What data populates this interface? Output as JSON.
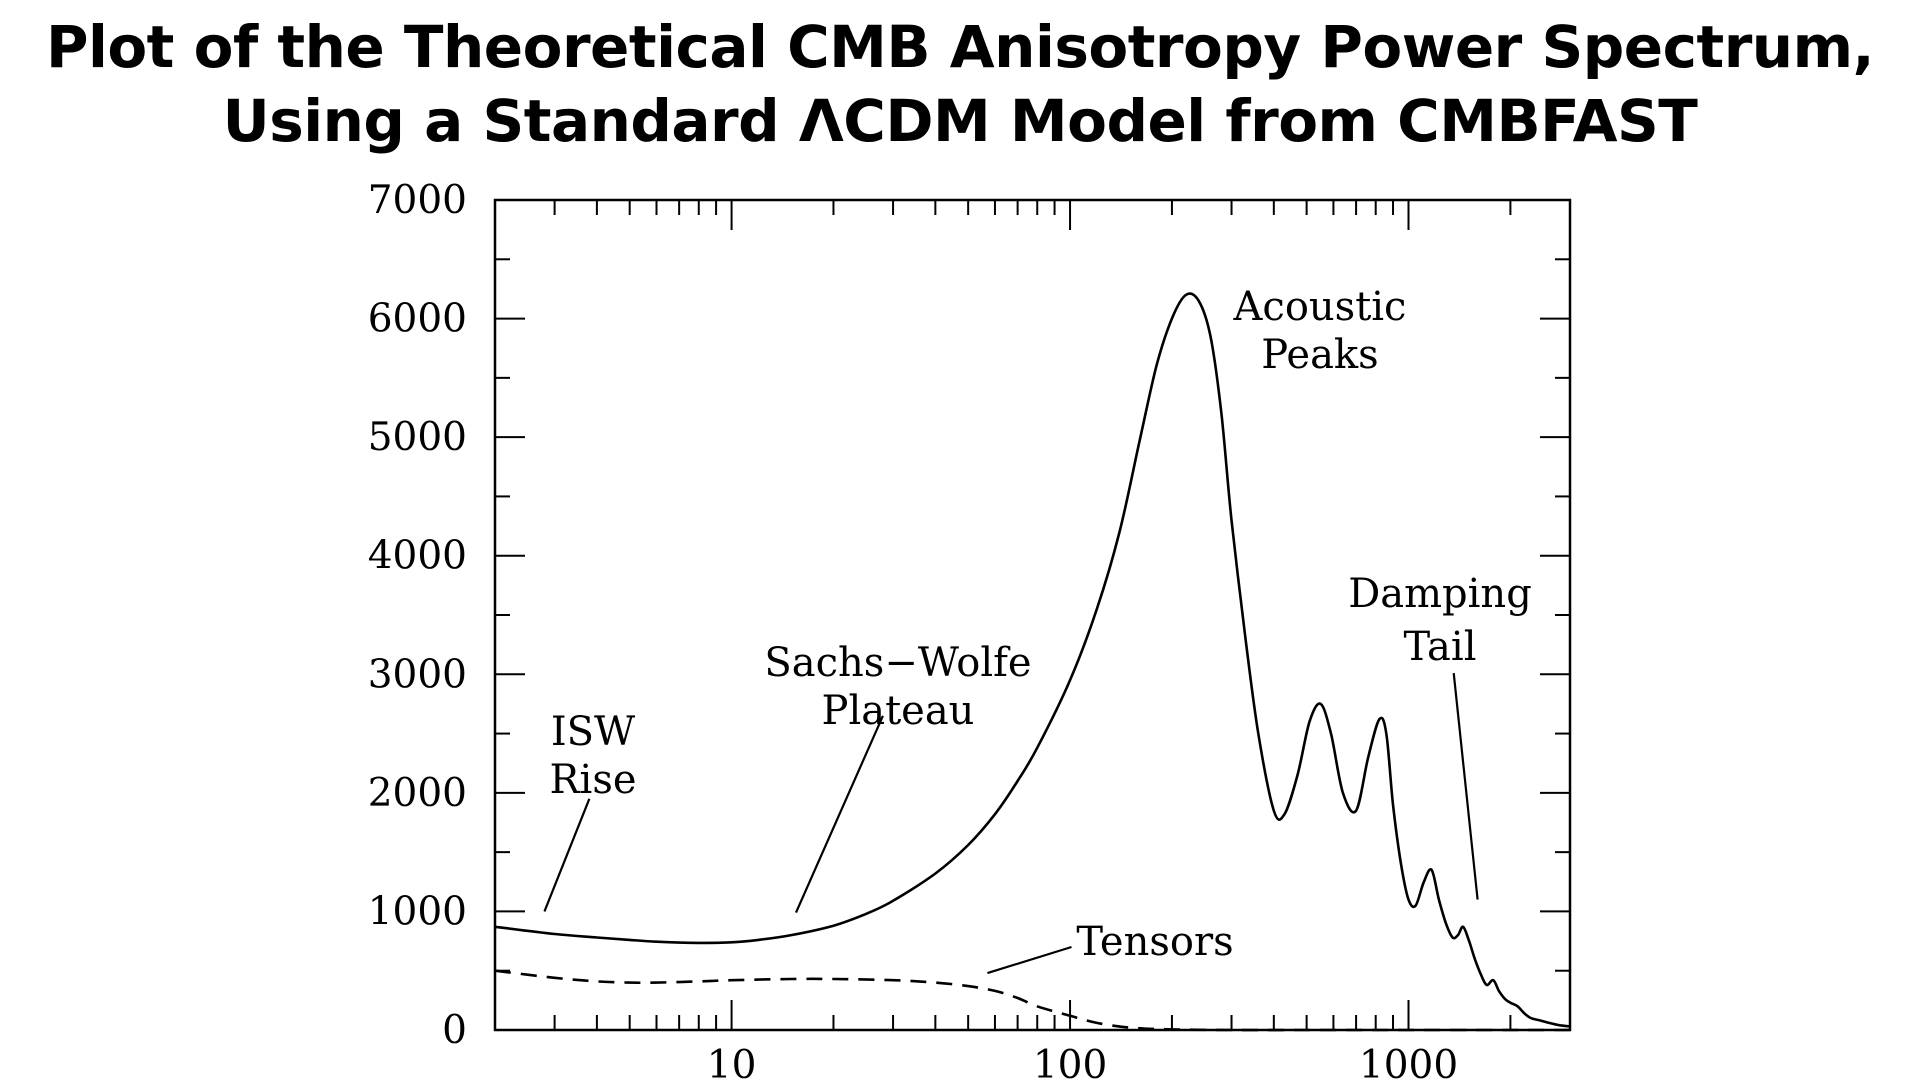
{
  "chart_data": {
    "type": "line",
    "title": [
      "Plot of the Theoretical CMB Anisotropy Power Spectrum,",
      "Using a Standard ΛCDM Model from CMBFAST"
    ],
    "xlabel": "",
    "ylabel": "",
    "xscale": "log",
    "xlim": [
      2,
      3000
    ],
    "ylim": [
      0,
      7000
    ],
    "x_ticks": [
      10,
      100,
      1000
    ],
    "x_tick_labels": [
      "10",
      "100",
      "1000"
    ],
    "y_ticks": [
      0,
      1000,
      2000,
      3000,
      4000,
      5000,
      6000,
      7000
    ],
    "y_tick_labels": [
      "0",
      "1000",
      "2000",
      "3000",
      "4000",
      "5000",
      "6000",
      "7000"
    ],
    "grid": false,
    "series": [
      {
        "style": "solid",
        "x": [
          2,
          3,
          4,
          5,
          6,
          8,
          10,
          12,
          15,
          20,
          25,
          30,
          40,
          50,
          60,
          70,
          80,
          100,
          120,
          140,
          160,
          180,
          200,
          220,
          240,
          260,
          280,
          300,
          330,
          360,
          400,
          430,
          470,
          510,
          550,
          590,
          640,
          700,
          760,
          820,
          860,
          900,
          950,
          1000,
          1050,
          1110,
          1170,
          1230,
          1290,
          1350,
          1400,
          1450,
          1510,
          1570,
          1630,
          1700,
          1780,
          1850,
          1930,
          2000,
          2100,
          2200,
          2300,
          2450,
          2600,
          2800,
          3000
        ],
        "y": [
          870,
          810,
          780,
          760,
          745,
          735,
          740,
          760,
          800,
          880,
          980,
          1090,
          1320,
          1560,
          1820,
          2100,
          2380,
          2950,
          3550,
          4200,
          4950,
          5600,
          6000,
          6200,
          6150,
          5850,
          5200,
          4300,
          3300,
          2500,
          1850,
          1820,
          2150,
          2600,
          2750,
          2500,
          2000,
          1850,
          2300,
          2620,
          2500,
          1900,
          1400,
          1100,
          1050,
          1250,
          1350,
          1100,
          900,
          780,
          800,
          870,
          750,
          600,
          480,
          380,
          420,
          330,
          260,
          230,
          200,
          140,
          100,
          80,
          60,
          40,
          30
        ]
      },
      {
        "style": "dashed",
        "x": [
          2,
          3,
          4,
          5,
          6,
          8,
          10,
          15,
          20,
          30,
          40,
          50,
          60,
          70,
          80,
          100,
          120,
          150,
          200,
          300,
          500,
          1000,
          2000,
          3000
        ],
        "y": [
          500,
          440,
          410,
          400,
          400,
          410,
          420,
          430,
          430,
          420,
          400,
          370,
          330,
          270,
          200,
          120,
          60,
          20,
          5,
          0,
          0,
          0,
          0,
          0
        ]
      }
    ],
    "annotations": [
      {
        "lines": [
          "ISW",
          "Rise"
        ]
      },
      {
        "lines": [
          "Sachs−Wolfe",
          "Plateau"
        ]
      },
      {
        "lines": [
          "Acoustic",
          "Peaks"
        ]
      },
      {
        "lines": [
          "Damping",
          "Tail"
        ]
      },
      {
        "lines": [
          "Tensors"
        ]
      }
    ]
  }
}
